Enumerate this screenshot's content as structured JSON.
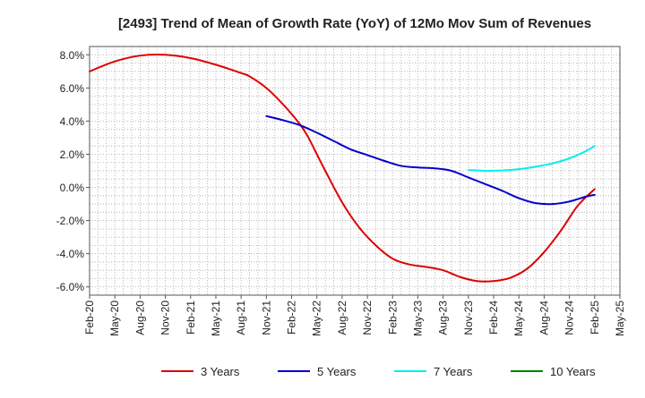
{
  "chart_data": {
    "type": "line",
    "title": "[2493]  Trend of Mean of Growth Rate (YoY) of 12Mo Mov Sum of Revenues",
    "xlabel": "",
    "ylabel": "",
    "x_tick_labels": [
      "Feb-20",
      "May-20",
      "Aug-20",
      "Nov-20",
      "Feb-21",
      "May-21",
      "Aug-21",
      "Nov-21",
      "Feb-22",
      "May-22",
      "Aug-22",
      "Nov-22",
      "Feb-23",
      "May-23",
      "Aug-23",
      "Nov-23",
      "Feb-24",
      "May-24",
      "Aug-24",
      "Nov-24",
      "Feb-25",
      "May-25"
    ],
    "y_ticks": [
      -6.0,
      -4.0,
      -2.0,
      0.0,
      2.0,
      4.0,
      6.0,
      8.0
    ],
    "y_tick_labels": [
      "-6.0%",
      "-4.0%",
      "-2.0%",
      "0.0%",
      "2.0%",
      "4.0%",
      "6.0%",
      "8.0%"
    ],
    "ylim": [
      -6.5,
      8.5
    ],
    "xlim_months": [
      0,
      63
    ],
    "grid": true,
    "legend_position": "bottom",
    "series": [
      {
        "name": "3 Years",
        "color": "#dd0000",
        "points": [
          [
            0,
            7.0
          ],
          [
            3,
            7.6
          ],
          [
            6,
            7.95
          ],
          [
            9,
            8.0
          ],
          [
            12,
            7.8
          ],
          [
            15,
            7.4
          ],
          [
            18,
            6.9
          ],
          [
            19,
            6.7
          ],
          [
            21,
            6.0
          ],
          [
            23,
            5.0
          ],
          [
            25,
            3.8
          ],
          [
            26,
            3.0
          ],
          [
            27,
            2.0
          ],
          [
            28,
            1.0
          ],
          [
            30,
            -0.9
          ],
          [
            32,
            -2.4
          ],
          [
            34,
            -3.5
          ],
          [
            36,
            -4.3
          ],
          [
            38,
            -4.65
          ],
          [
            40,
            -4.8
          ],
          [
            42,
            -5.0
          ],
          [
            44,
            -5.4
          ],
          [
            46,
            -5.65
          ],
          [
            48,
            -5.65
          ],
          [
            50,
            -5.45
          ],
          [
            52,
            -4.9
          ],
          [
            54,
            -3.9
          ],
          [
            56,
            -2.6
          ],
          [
            58,
            -1.1
          ],
          [
            60,
            -0.1
          ]
        ]
      },
      {
        "name": "5 Years",
        "color": "#0000cc",
        "points": [
          [
            21,
            4.3
          ],
          [
            23,
            4.05
          ],
          [
            25,
            3.75
          ],
          [
            27,
            3.3
          ],
          [
            29,
            2.8
          ],
          [
            31,
            2.3
          ],
          [
            33,
            1.95
          ],
          [
            35,
            1.6
          ],
          [
            37,
            1.3
          ],
          [
            39,
            1.2
          ],
          [
            41,
            1.15
          ],
          [
            43,
            1.0
          ],
          [
            45,
            0.6
          ],
          [
            47,
            0.2
          ],
          [
            49,
            -0.2
          ],
          [
            51,
            -0.65
          ],
          [
            53,
            -0.95
          ],
          [
            55,
            -1.0
          ],
          [
            57,
            -0.85
          ],
          [
            59,
            -0.55
          ],
          [
            60,
            -0.45
          ]
        ]
      },
      {
        "name": "7 Years",
        "color": "#00eeee",
        "points": [
          [
            45,
            1.05
          ],
          [
            47,
            1.0
          ],
          [
            49,
            1.02
          ],
          [
            51,
            1.1
          ],
          [
            53,
            1.25
          ],
          [
            55,
            1.45
          ],
          [
            57,
            1.75
          ],
          [
            59,
            2.2
          ],
          [
            60,
            2.5
          ]
        ]
      },
      {
        "name": "10 Years",
        "color": "#008000",
        "points": []
      }
    ]
  }
}
